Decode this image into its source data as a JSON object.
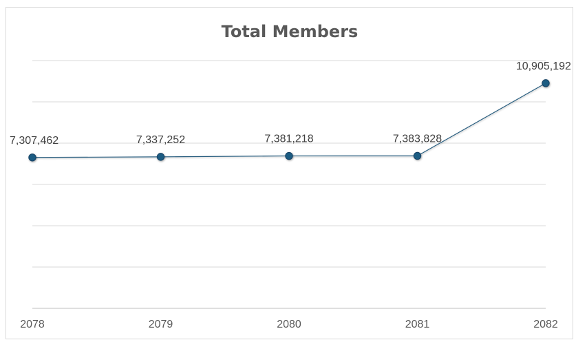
{
  "chart_data": {
    "type": "line",
    "title": "Total Members",
    "xlabel": "",
    "ylabel": "",
    "categories": [
      "2078",
      "2079",
      "2080",
      "2081",
      "2082"
    ],
    "series": [
      {
        "values": [
          7307462,
          7337252,
          7381218,
          7383828,
          10905192
        ],
        "labels": [
          "7,307,462",
          "7,337,252",
          "7,381,218",
          "7,383,828",
          "10,905,192"
        ]
      }
    ],
    "ylim": [
      0,
      12000000
    ],
    "ytick_step": 2000000,
    "show_y_tick_labels": false,
    "grid": true,
    "legend": "none",
    "colors": {
      "line": "#2b5f80",
      "marker": "#1f5b82",
      "marker_edge": "#134163"
    }
  }
}
